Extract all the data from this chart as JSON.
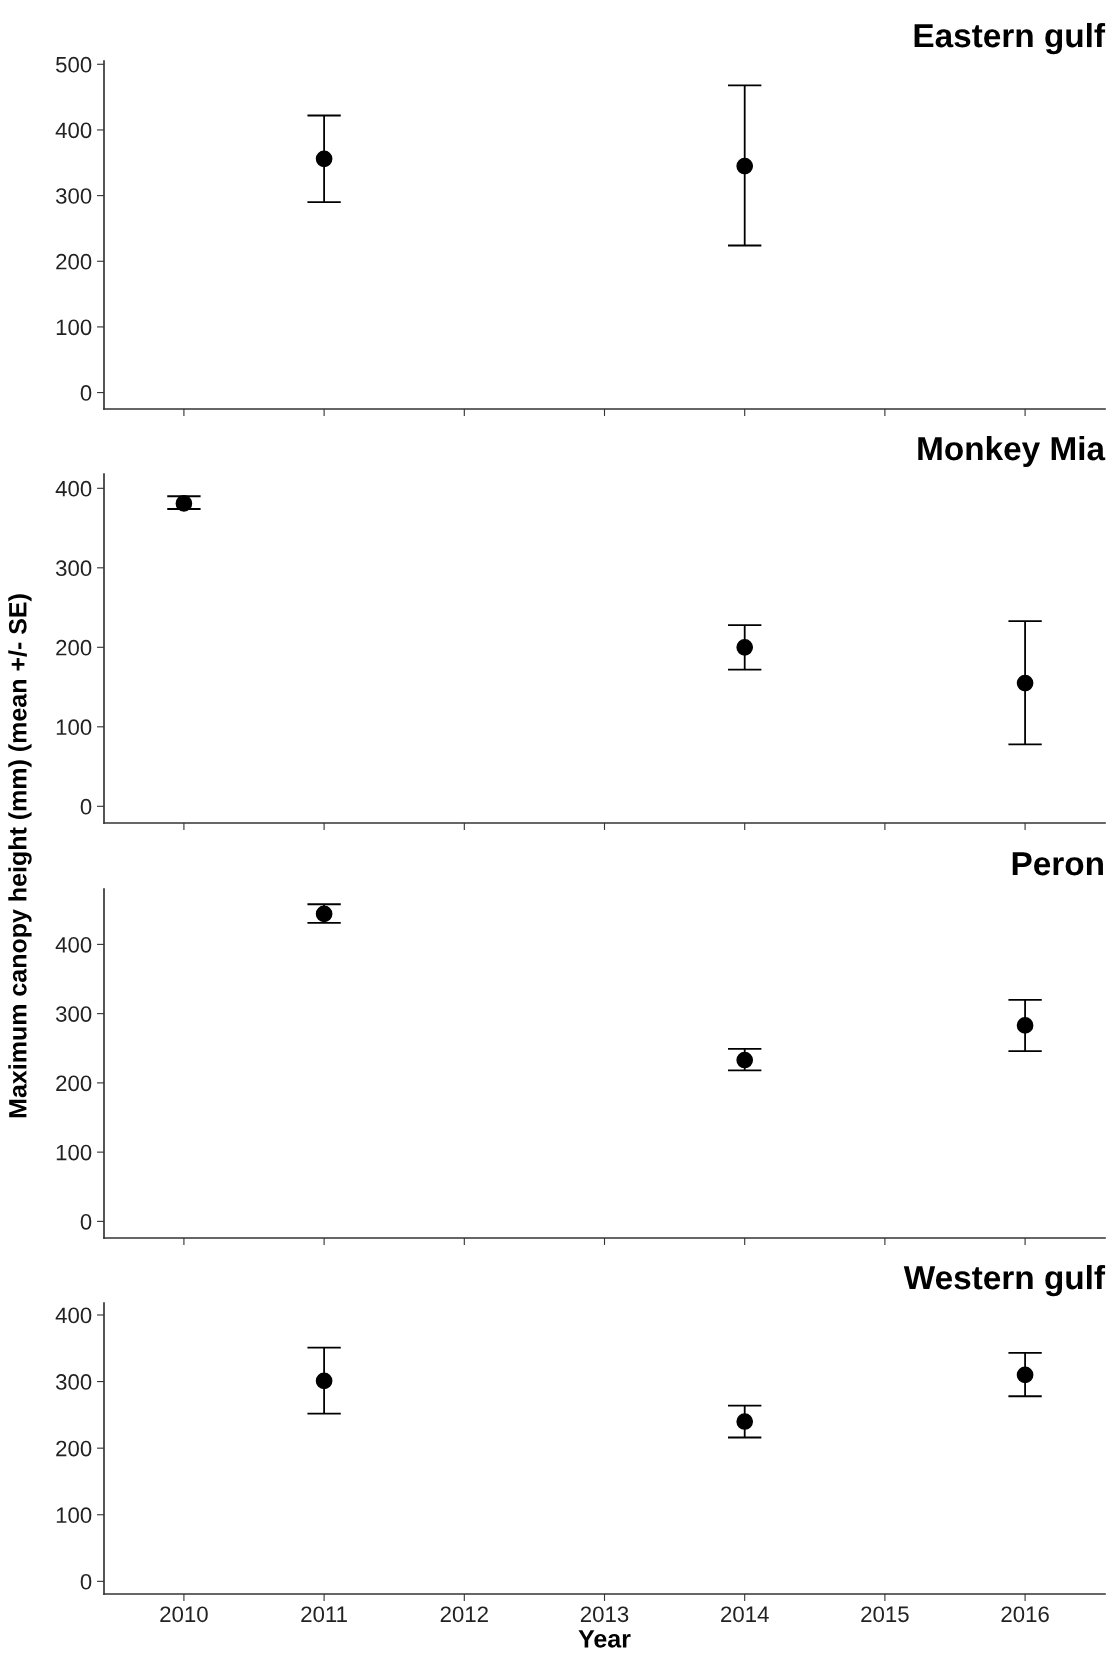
{
  "chart_data": [
    {
      "type": "scatter",
      "title": "Eastern gulf",
      "x": [
        2011,
        2014
      ],
      "values": [
        356,
        345
      ],
      "errors": [
        [
          290,
          422
        ],
        [
          224,
          468
        ]
      ],
      "color": "#000000",
      "marker": "circle",
      "xlim": [
        2009.43,
        2016.57
      ],
      "xticks": [
        2010,
        2011,
        2012,
        2013,
        2014,
        2015,
        2016
      ],
      "ylim": [
        -25,
        505
      ],
      "yticks": [
        0,
        100,
        200,
        300,
        400,
        500
      ],
      "tick_labels": "y",
      "grid": false
    },
    {
      "type": "scatter",
      "title": "Monkey Mia",
      "x": [
        2010,
        2014,
        2016
      ],
      "values": [
        381,
        200,
        155
      ],
      "errors": [
        [
          374,
          390
        ],
        [
          172,
          228
        ],
        [
          78,
          233
        ]
      ],
      "color": "#000000",
      "marker": "circle",
      "xlim": [
        2009.43,
        2016.57
      ],
      "xticks": [
        2010,
        2011,
        2012,
        2013,
        2014,
        2015,
        2016
      ],
      "ylim": [
        -21,
        418
      ],
      "yticks": [
        0,
        100,
        200,
        300,
        400
      ],
      "tick_labels": "y",
      "grid": false
    },
    {
      "type": "scatter",
      "title": "Peron",
      "ylabel": "Maximum canopy height (mm) (mean +/- SE)",
      "x": [
        2011,
        2014,
        2016
      ],
      "values": [
        444,
        233,
        283
      ],
      "errors": [
        [
          431,
          458
        ],
        [
          218,
          249
        ],
        [
          246,
          320
        ]
      ],
      "color": "#000000",
      "marker": "circle",
      "xlim": [
        2009.43,
        2016.57
      ],
      "xticks": [
        2010,
        2011,
        2012,
        2013,
        2014,
        2015,
        2016
      ],
      "ylim": [
        -24,
        480
      ],
      "yticks": [
        0,
        100,
        200,
        300,
        400
      ],
      "tick_labels": "y",
      "grid": false
    },
    {
      "type": "scatter",
      "title": "Western gulf",
      "xlabel": "Year",
      "x": [
        2011,
        2014,
        2016
      ],
      "values": [
        301,
        240,
        310
      ],
      "errors": [
        [
          252,
          351
        ],
        [
          216,
          264
        ],
        [
          278,
          343
        ]
      ],
      "color": "#000000",
      "marker": "circle",
      "xlim": [
        2009.43,
        2016.57
      ],
      "xticks": [
        2010,
        2011,
        2012,
        2013,
        2014,
        2015,
        2016
      ],
      "ylim": [
        -19,
        418
      ],
      "yticks": [
        0,
        100,
        200,
        300,
        400
      ],
      "grid": false
    }
  ]
}
